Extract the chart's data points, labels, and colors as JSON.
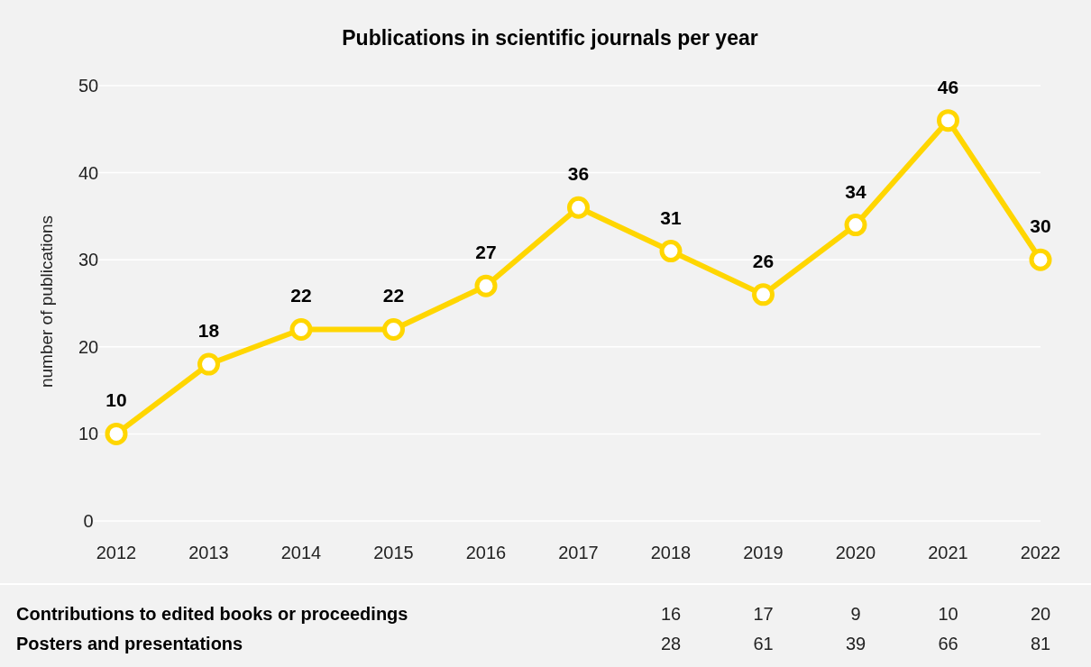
{
  "chart_data": [
    {
      "type": "line",
      "title": "Publications in scientific journals per year",
      "ylabel": "number of publications",
      "categories": [
        "2012",
        "2013",
        "2014",
        "2015",
        "2016",
        "2017",
        "2018",
        "2019",
        "2020",
        "2021",
        "2022"
      ],
      "series": [
        {
          "color": "#ffd600",
          "values": [
            10,
            18,
            22,
            22,
            27,
            36,
            31,
            26,
            34,
            46,
            30
          ]
        }
      ],
      "ylim": [
        0,
        50
      ],
      "yticks": [
        0,
        10,
        20,
        30,
        40,
        50
      ],
      "grid": "y",
      "marker": "circle",
      "line_style": "solid",
      "data_labels": true
    },
    {
      "type": "other",
      "annotations": [
        "Contributions to edited books or proceedings",
        "16",
        "17",
        "9",
        "10",
        "20",
        "Posters and presentations",
        "28",
        "61",
        "39",
        "66",
        "81"
      ]
    }
  ]
}
